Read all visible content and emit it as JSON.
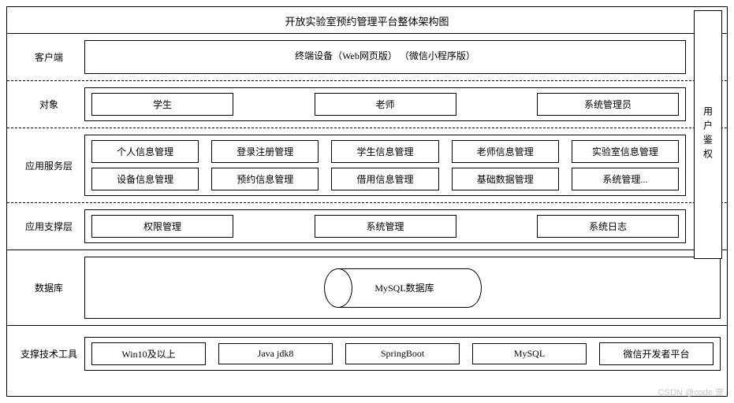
{
  "title": "开放实验室预约管理平台整体架构图",
  "right_column": "用户鉴权",
  "layers": {
    "client": {
      "label": "客户端",
      "text": "终端设备（Web网页版）  （微信小程序版）"
    },
    "object": {
      "label": "对象",
      "items": [
        "学生",
        "老师",
        "系统管理员"
      ]
    },
    "service": {
      "label": "应用服务层",
      "row1": [
        "个人信息管理",
        "登录注册管理",
        "学生信息管理",
        "老师信息管理",
        "实验室信息管理"
      ],
      "row2": [
        "设备信息管理",
        "预约信息管理",
        "借用信息管理",
        "基础数据管理",
        "系统管理..."
      ]
    },
    "support": {
      "label": "应用支撑层",
      "items": [
        "权限管理",
        "系统管理",
        "系统日志"
      ]
    },
    "database": {
      "label": "数据库",
      "cylinder": "MySQL数据库"
    },
    "tech": {
      "label": "支撑技术工具",
      "items": [
        "Win10及以上",
        "Java jdk8",
        "SpringBoot",
        "MySQL",
        "微信开发者平台"
      ]
    }
  },
  "watermark": "CSDN @code.宠",
  "style": {
    "border_color": "#000000",
    "background": "#ffffff",
    "font": "SimSun",
    "base_fontsize": 12,
    "dashed_separator": true
  }
}
